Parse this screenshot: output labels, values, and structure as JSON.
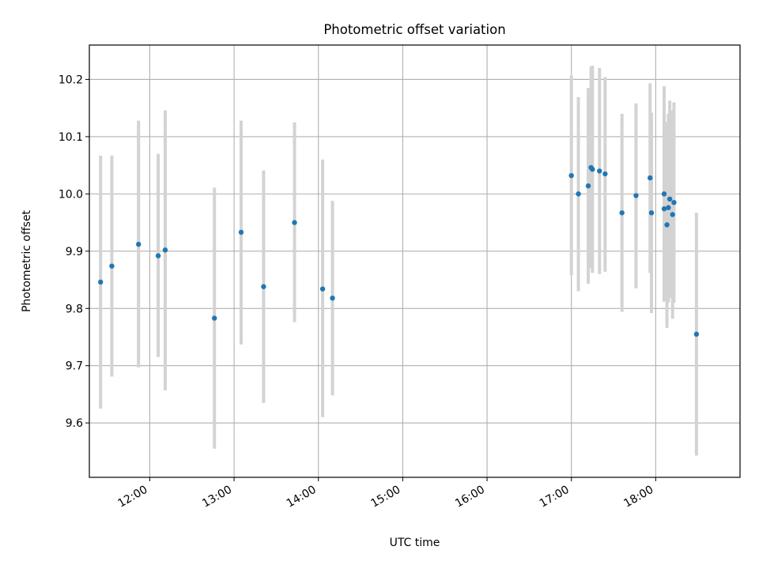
{
  "chart_data": {
    "type": "scatter",
    "title": "Photometric offset variation",
    "xlabel": "UTC time",
    "ylabel": "Photometric offset",
    "x_unit": "UTC time (HH:MM)",
    "xlim": [
      "11:17",
      "19:00"
    ],
    "ylim": [
      9.505,
      10.26
    ],
    "x_ticks": [
      "12:00",
      "13:00",
      "14:00",
      "15:00",
      "16:00",
      "17:00",
      "18:00"
    ],
    "y_ticks": [
      "9.6",
      "9.7",
      "9.8",
      "9.9",
      "10.0",
      "10.1",
      "10.2"
    ],
    "grid": true,
    "legend": "none",
    "colors": {
      "points": "#1f77b4",
      "error_bars": "#d3d3d3",
      "grid": "#b0b0b0"
    },
    "points": [
      {
        "x": "11:25",
        "y": 9.846,
        "low": 9.625,
        "high": 10.067
      },
      {
        "x": "11:33",
        "y": 9.874,
        "low": 9.681,
        "high": 10.067
      },
      {
        "x": "11:52",
        "y": 9.912,
        "low": 9.697,
        "high": 10.128
      },
      {
        "x": "12:06",
        "y": 9.892,
        "low": 9.715,
        "high": 10.07
      },
      {
        "x": "12:11",
        "y": 9.902,
        "low": 9.657,
        "high": 10.146
      },
      {
        "x": "12:46",
        "y": 9.783,
        "low": 9.555,
        "high": 10.011
      },
      {
        "x": "13:05",
        "y": 9.933,
        "low": 9.737,
        "high": 10.128
      },
      {
        "x": "13:21",
        "y": 9.838,
        "low": 9.635,
        "high": 10.041
      },
      {
        "x": "13:43",
        "y": 9.95,
        "low": 9.776,
        "high": 10.125
      },
      {
        "x": "14:03",
        "y": 9.834,
        "low": 9.61,
        "high": 10.06
      },
      {
        "x": "14:10",
        "y": 9.818,
        "low": 9.648,
        "high": 9.988
      },
      {
        "x": "17:00",
        "y": 10.032,
        "low": 9.858,
        "high": 10.207
      },
      {
        "x": "17:05",
        "y": 10.0,
        "low": 9.83,
        "high": 10.169
      },
      {
        "x": "17:12",
        "y": 10.014,
        "low": 9.843,
        "high": 10.185
      },
      {
        "x": "17:14",
        "y": 10.046,
        "low": 9.87,
        "high": 10.222
      },
      {
        "x": "17:15",
        "y": 10.043,
        "low": 9.862,
        "high": 10.224
      },
      {
        "x": "17:20",
        "y": 10.04,
        "low": 9.86,
        "high": 10.22
      },
      {
        "x": "17:24",
        "y": 10.035,
        "low": 9.864,
        "high": 10.204
      },
      {
        "x": "17:36",
        "y": 9.967,
        "low": 9.794,
        "high": 10.14
      },
      {
        "x": "17:46",
        "y": 9.997,
        "low": 9.835,
        "high": 10.158
      },
      {
        "x": "17:56",
        "y": 10.028,
        "low": 9.862,
        "high": 10.193
      },
      {
        "x": "17:57",
        "y": 9.967,
        "low": 9.792,
        "high": 10.142
      },
      {
        "x": "18:06",
        "y": 10.0,
        "low": 9.812,
        "high": 10.137
      },
      {
        "x": "18:06",
        "y": 9.974,
        "low": 9.812,
        "high": 10.188
      },
      {
        "x": "18:08",
        "y": 9.946,
        "low": 9.766,
        "high": 10.126
      },
      {
        "x": "18:09",
        "y": 9.976,
        "low": 9.81,
        "high": 10.14
      },
      {
        "x": "18:10",
        "y": 9.991,
        "low": 9.818,
        "high": 10.163
      },
      {
        "x": "18:12",
        "y": 9.964,
        "low": 9.782,
        "high": 10.146
      },
      {
        "x": "18:13",
        "y": 9.985,
        "low": 9.81,
        "high": 10.16
      },
      {
        "x": "18:29",
        "y": 9.755,
        "low": 9.543,
        "high": 9.967
      }
    ]
  }
}
